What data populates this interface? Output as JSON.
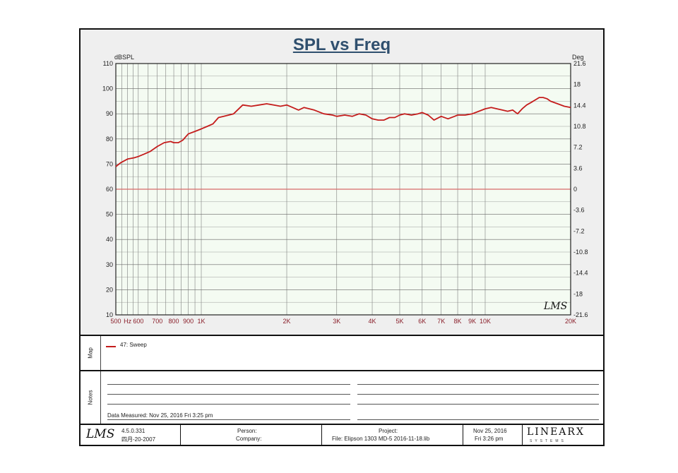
{
  "chart_data": {
    "type": "line",
    "title": "SPL vs Freq",
    "left_unit": "dBSPL",
    "right_unit": "Deg",
    "x_scale": "log",
    "xlim": [
      500,
      20000
    ],
    "ylim": [
      10,
      110
    ],
    "y2lim": [
      -21.6,
      21.6
    ],
    "x_ticks": [
      {
        "value": 500,
        "label": "500"
      },
      {
        "value": 550,
        "label": "Hz"
      },
      {
        "value": 600,
        "label": "600"
      },
      {
        "value": 700,
        "label": "700"
      },
      {
        "value": 800,
        "label": "800"
      },
      {
        "value": 900,
        "label": "900"
      },
      {
        "value": 1000,
        "label": "1K"
      },
      {
        "value": 2000,
        "label": "2K"
      },
      {
        "value": 3000,
        "label": "3K"
      },
      {
        "value": 4000,
        "label": "4K"
      },
      {
        "value": 5000,
        "label": "5K"
      },
      {
        "value": 6000,
        "label": "6K"
      },
      {
        "value": 7000,
        "label": "7K"
      },
      {
        "value": 8000,
        "label": "8K"
      },
      {
        "value": 9000,
        "label": "9K"
      },
      {
        "value": 10000,
        "label": "10K"
      },
      {
        "value": 20000,
        "label": "20K"
      }
    ],
    "y_ticks": [
      10,
      20,
      30,
      40,
      50,
      60,
      70,
      80,
      90,
      100,
      110
    ],
    "y2_ticks": [
      "-21.6",
      "-18",
      "-14.4",
      "-10.8",
      "-7.2",
      "-3.6",
      "0",
      "3.6",
      "7.2",
      "10.8",
      "14.4",
      "18",
      "21.6"
    ],
    "grid": true,
    "reference_line": 60,
    "series": [
      {
        "name": "47: Sweep",
        "color": "#c41c1c",
        "x": [
          500,
          520,
          550,
          580,
          600,
          630,
          660,
          700,
          740,
          780,
          800,
          830,
          860,
          900,
          950,
          1000,
          1050,
          1100,
          1150,
          1200,
          1300,
          1400,
          1500,
          1600,
          1700,
          1800,
          1900,
          2000,
          2100,
          2200,
          2300,
          2500,
          2700,
          2900,
          3000,
          3200,
          3400,
          3600,
          3800,
          4000,
          4200,
          4400,
          4600,
          4800,
          5000,
          5200,
          5500,
          5800,
          6000,
          6300,
          6600,
          7000,
          7400,
          7800,
          8000,
          8500,
          9000,
          9500,
          10000,
          10500,
          11000,
          11500,
          12000,
          12500,
          13000,
          13500,
          14000,
          14500,
          15000,
          15500,
          16000,
          16500,
          17000,
          18000,
          19000,
          20000
        ],
        "y": [
          69,
          70.5,
          72,
          72.5,
          73,
          74,
          75,
          77,
          78.5,
          79,
          78.5,
          78.5,
          79.5,
          82,
          83,
          84,
          85,
          86,
          88.5,
          89,
          90,
          93.5,
          93,
          93.5,
          94,
          93.5,
          93,
          93.5,
          92.5,
          91.5,
          92.5,
          91.5,
          90,
          89.5,
          89,
          89.5,
          89,
          90,
          89.5,
          88,
          87.5,
          87.5,
          88.5,
          88.5,
          89.5,
          90,
          89.5,
          90,
          90.5,
          89.5,
          87.5,
          89,
          88,
          89,
          89.5,
          89.5,
          90,
          91,
          92,
          92.5,
          92,
          91.5,
          91,
          91.5,
          90,
          92,
          93.5,
          94.5,
          95.5,
          96.5,
          96.5,
          96,
          95,
          94,
          93,
          92.5
        ]
      }
    ]
  },
  "map": {
    "label": "Map",
    "legend_label": "47: Sweep"
  },
  "notes": {
    "label": "Notes",
    "data_measured": "Data Measured: Nov 25, 2016   Fri   3:25 pm"
  },
  "footer": {
    "logo_text": "LMS",
    "version": "4.5.0.331",
    "version_date": "四月-20-2007",
    "person_label": "Person:",
    "company_label": "Company:",
    "project_label": "Project:",
    "file_label": "File: Elipson 1303 MD-5 2016-11-18.lib",
    "date": "Nov 25, 2016",
    "time": "Fri   3:26 pm",
    "brand": "LINEARX",
    "brand_sub": "SYSTEMS"
  },
  "watermark": "LMS"
}
